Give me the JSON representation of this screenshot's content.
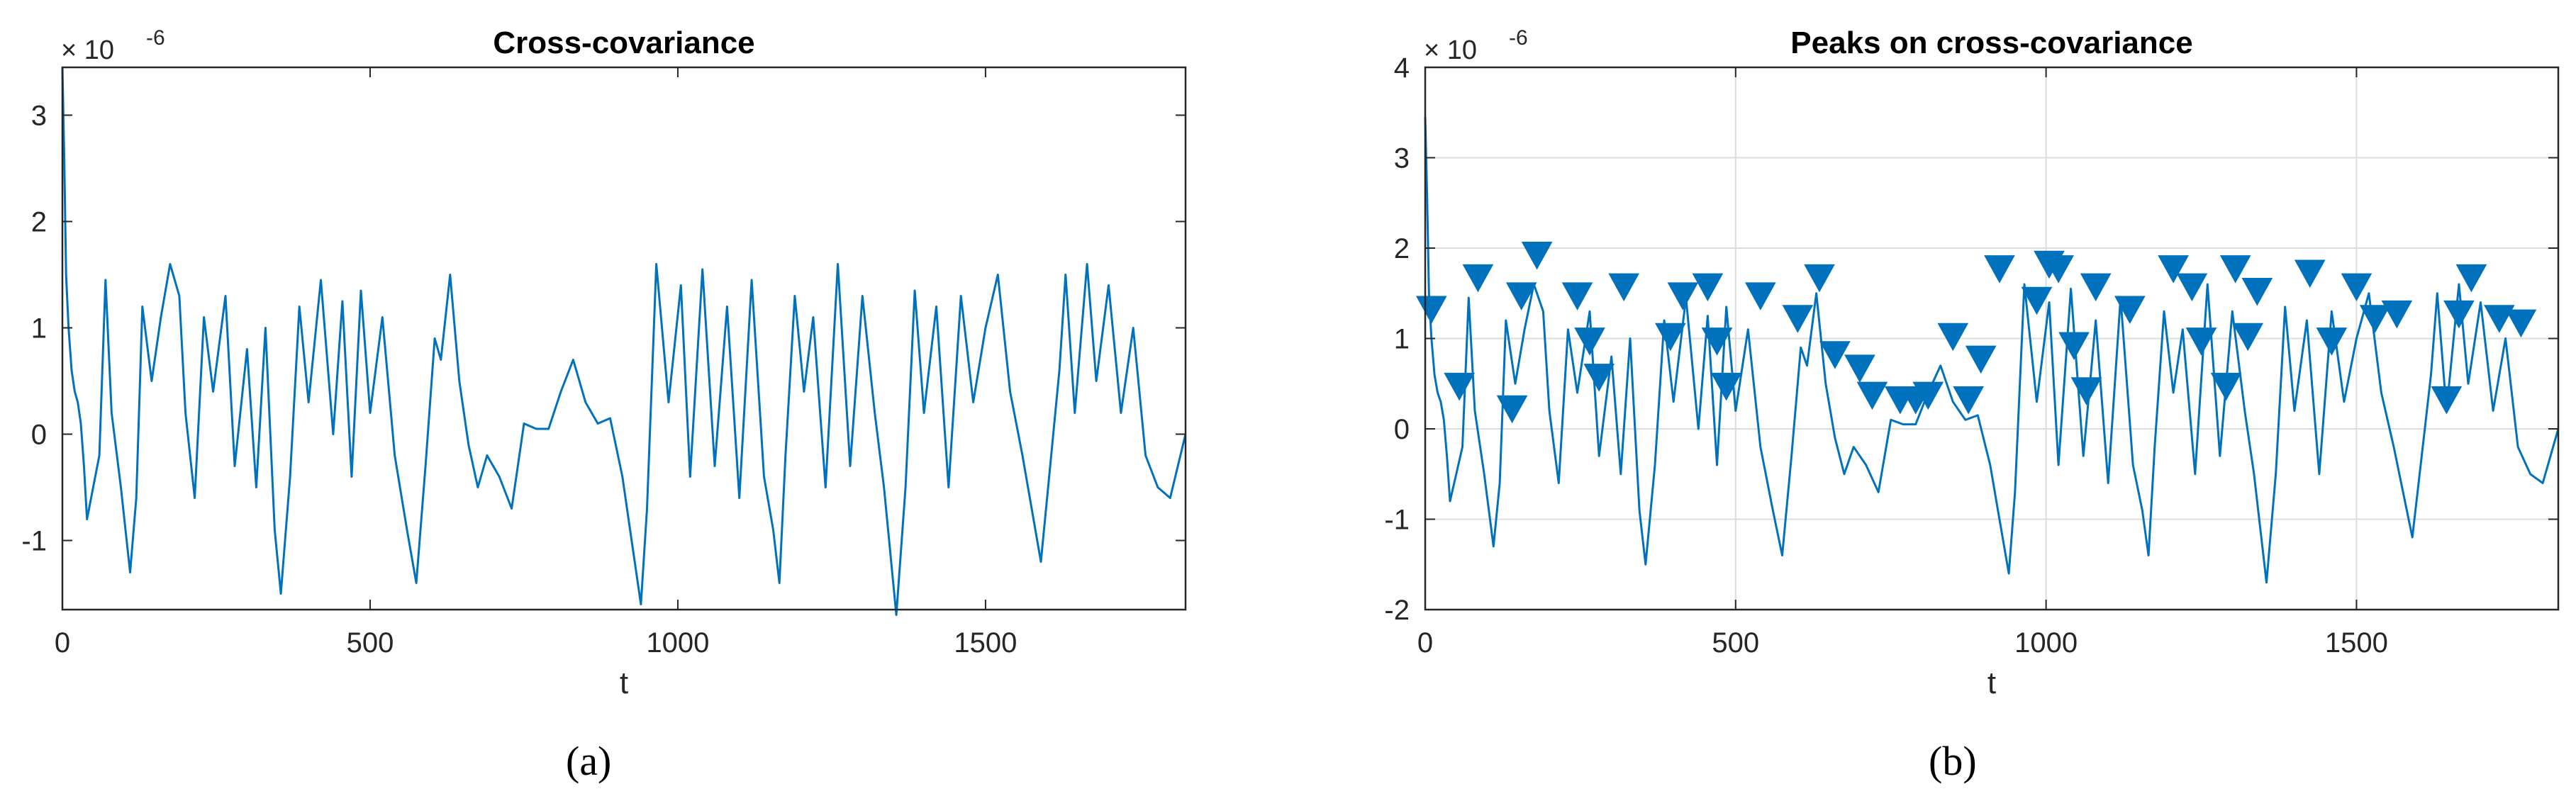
{
  "panel_labels": [
    "(a)",
    "(b)"
  ],
  "chart_data": [
    {
      "type": "line",
      "title": "Cross-covariance",
      "xlabel": "t",
      "ylabel": "",
      "exponent_label": "× 10",
      "exponent_power": "-6",
      "xlim": [
        0,
        1825
      ],
      "ylim": [
        -1.65,
        3.45
      ],
      "xticks": [
        0,
        500,
        1000,
        1500
      ],
      "xtick_labels": [
        "0",
        "500",
        "1000",
        "1500"
      ],
      "yticks": [
        -1,
        0,
        1,
        2,
        3
      ],
      "ytick_labels": [
        "-1",
        "0",
        "1",
        "2",
        "3"
      ],
      "grid": false,
      "color": "#0072BD",
      "series": [
        {
          "x": [
            0,
            3,
            6,
            10,
            15,
            20,
            25,
            30,
            35,
            40,
            50,
            60,
            70,
            80,
            95,
            110,
            120,
            130,
            145,
            160,
            175,
            190,
            200,
            215,
            230,
            245,
            265,
            280,
            300,
            315,
            330,
            345,
            355,
            370,
            385,
            400,
            420,
            440,
            455,
            470,
            485,
            500,
            520,
            540,
            560,
            575,
            590,
            605,
            615,
            630,
            645,
            660,
            675,
            690,
            710,
            730,
            750,
            770,
            790,
            810,
            830,
            850,
            870,
            890,
            910,
            925,
            940,
            950,
            965,
            985,
            1005,
            1020,
            1040,
            1060,
            1080,
            1100,
            1120,
            1140,
            1155,
            1165,
            1175,
            1190,
            1205,
            1220,
            1240,
            1260,
            1280,
            1300,
            1320,
            1335,
            1345,
            1355,
            1370,
            1385,
            1400,
            1420,
            1440,
            1460,
            1480,
            1500,
            1520,
            1540,
            1560,
            1575,
            1590,
            1605,
            1620,
            1630,
            1645,
            1665,
            1680,
            1700,
            1720,
            1740,
            1760,
            1780,
            1800,
            1825
          ],
          "y": [
            3.45,
            2.6,
            1.5,
            1.0,
            0.6,
            0.4,
            0.3,
            0.1,
            -0.3,
            -0.8,
            -0.5,
            -0.2,
            1.45,
            0.2,
            -0.5,
            -1.3,
            -0.6,
            1.2,
            0.5,
            1.1,
            1.6,
            1.3,
            0.2,
            -0.6,
            1.1,
            0.4,
            1.3,
            -0.3,
            0.8,
            -0.5,
            1.0,
            -0.9,
            -1.5,
            -0.4,
            1.2,
            0.3,
            1.45,
            0.0,
            1.25,
            -0.4,
            1.35,
            0.2,
            1.1,
            -0.2,
            -0.9,
            -1.4,
            -0.3,
            0.9,
            0.7,
            1.5,
            0.5,
            -0.1,
            -0.5,
            -0.2,
            -0.4,
            -0.7,
            0.1,
            0.05,
            0.05,
            0.4,
            0.7,
            0.3,
            0.1,
            0.15,
            -0.4,
            -1.0,
            -1.6,
            -0.7,
            1.6,
            0.3,
            1.4,
            -0.4,
            1.55,
            -0.3,
            1.2,
            -0.6,
            1.45,
            -0.4,
            -0.9,
            -1.4,
            -0.2,
            1.3,
            0.4,
            1.1,
            -0.5,
            1.6,
            -0.3,
            1.3,
            0.2,
            -0.5,
            -1.1,
            -1.7,
            -0.5,
            1.35,
            0.2,
            1.2,
            -0.5,
            1.3,
            0.3,
            1.0,
            1.5,
            0.4,
            -0.2,
            -0.7,
            -1.2,
            -0.3,
            0.6,
            1.5,
            0.2,
            1.6,
            0.5,
            1.4,
            0.2,
            1.0,
            -0.2,
            -0.5,
            -0.6,
            0.0
          ]
        }
      ]
    },
    {
      "type": "line",
      "title": "Peaks on cross-covariance",
      "xlabel": "t",
      "ylabel": "",
      "exponent_label": "× 10",
      "exponent_power": "-6",
      "xlim": [
        0,
        1825
      ],
      "ylim": [
        -2,
        4
      ],
      "xticks": [
        0,
        500,
        1000,
        1500
      ],
      "xtick_labels": [
        "0",
        "500",
        "1000",
        "1500"
      ],
      "yticks": [
        -2,
        -1,
        0,
        1,
        2,
        3,
        4
      ],
      "ytick_labels": [
        "-2",
        "-1",
        "0",
        "1",
        "2",
        "3",
        "4"
      ],
      "grid": true,
      "color": "#0072BD",
      "series": [
        {
          "x": [
            0,
            3,
            6,
            10,
            15,
            20,
            25,
            30,
            35,
            40,
            50,
            60,
            70,
            80,
            95,
            110,
            120,
            130,
            145,
            160,
            175,
            190,
            200,
            215,
            230,
            245,
            265,
            280,
            300,
            315,
            330,
            345,
            355,
            370,
            385,
            400,
            420,
            440,
            455,
            470,
            485,
            500,
            520,
            540,
            560,
            575,
            590,
            605,
            615,
            630,
            645,
            660,
            675,
            690,
            710,
            730,
            750,
            770,
            790,
            810,
            830,
            850,
            870,
            890,
            910,
            925,
            940,
            950,
            965,
            985,
            1005,
            1020,
            1040,
            1060,
            1080,
            1100,
            1120,
            1140,
            1155,
            1165,
            1175,
            1190,
            1205,
            1220,
            1240,
            1260,
            1280,
            1300,
            1320,
            1335,
            1345,
            1355,
            1370,
            1385,
            1400,
            1420,
            1440,
            1460,
            1480,
            1500,
            1520,
            1540,
            1560,
            1575,
            1590,
            1605,
            1620,
            1630,
            1645,
            1665,
            1680,
            1700,
            1720,
            1740,
            1760,
            1780,
            1800,
            1825
          ],
          "y": [
            3.45,
            2.6,
            1.5,
            1.0,
            0.6,
            0.4,
            0.3,
            0.1,
            -0.3,
            -0.8,
            -0.5,
            -0.2,
            1.45,
            0.2,
            -0.5,
            -1.3,
            -0.6,
            1.2,
            0.5,
            1.1,
            1.6,
            1.3,
            0.2,
            -0.6,
            1.1,
            0.4,
            1.3,
            -0.3,
            0.8,
            -0.5,
            1.0,
            -0.9,
            -1.5,
            -0.4,
            1.2,
            0.3,
            1.45,
            0.0,
            1.25,
            -0.4,
            1.35,
            0.2,
            1.1,
            -0.2,
            -0.9,
            -1.4,
            -0.3,
            0.9,
            0.7,
            1.5,
            0.5,
            -0.1,
            -0.5,
            -0.2,
            -0.4,
            -0.7,
            0.1,
            0.05,
            0.05,
            0.4,
            0.7,
            0.3,
            0.1,
            0.15,
            -0.4,
            -1.0,
            -1.6,
            -0.7,
            1.6,
            0.3,
            1.4,
            -0.4,
            1.55,
            -0.3,
            1.2,
            -0.6,
            1.45,
            -0.4,
            -0.9,
            -1.4,
            -0.2,
            1.3,
            0.4,
            1.1,
            -0.5,
            1.6,
            -0.3,
            1.3,
            0.2,
            -0.5,
            -1.1,
            -1.7,
            -0.5,
            1.35,
            0.2,
            1.2,
            -0.5,
            1.3,
            0.3,
            1.0,
            1.5,
            0.4,
            -0.2,
            -0.7,
            -1.2,
            -0.3,
            0.6,
            1.5,
            0.2,
            1.6,
            0.5,
            1.4,
            0.2,
            1.0,
            -0.2,
            -0.5,
            -0.6,
            0.0
          ]
        }
      ],
      "peaks": {
        "marker": "triangle-down",
        "x": [
          10,
          55,
          85,
          140,
          155,
          180,
          245,
          265,
          280,
          320,
          395,
          415,
          455,
          470,
          485,
          540,
          600,
          635,
          660,
          700,
          720,
          765,
          790,
          810,
          850,
          875,
          895,
          925,
          985,
          1005,
          1020,
          1045,
          1065,
          1080,
          1135,
          1205,
          1235,
          1250,
          1290,
          1305,
          1325,
          1340,
          1425,
          1460,
          1500,
          1530,
          1565,
          1645,
          1665,
          1685,
          1730,
          1765
        ],
        "y": [
          1.2,
          0.35,
          1.55,
          0.1,
          1.35,
          1.8,
          1.35,
          0.85,
          0.45,
          1.45,
          0.9,
          1.35,
          1.45,
          0.85,
          0.35,
          1.35,
          1.1,
          1.55,
          0.7,
          0.55,
          0.25,
          0.2,
          0.2,
          0.25,
          0.9,
          0.2,
          0.65,
          1.65,
          1.3,
          1.7,
          1.65,
          0.8,
          0.3,
          1.45,
          1.2,
          1.65,
          1.45,
          0.85,
          0.35,
          1.65,
          0.9,
          1.4,
          1.6,
          0.85,
          1.45,
          1.1,
          1.15,
          0.2,
          1.15,
          1.55,
          1.1,
          1.05
        ]
      }
    }
  ]
}
